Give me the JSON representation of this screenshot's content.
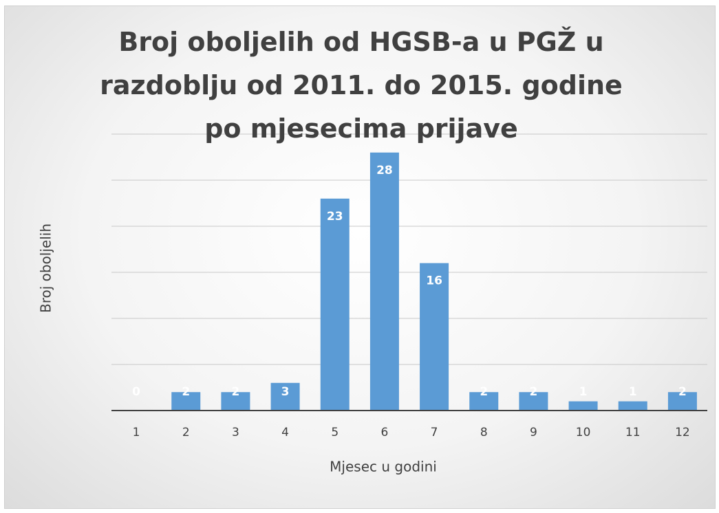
{
  "chart_data": {
    "type": "bar",
    "title": "Broj oboljelih od HGSB-a u PGŽ u razdoblju od 2011. do 2015. godine po mjesecima prijave",
    "x_label": "Mjesec u godini",
    "y_label": "Broj oboljelih",
    "categories": [
      "1",
      "2",
      "3",
      "4",
      "5",
      "6",
      "7",
      "8",
      "9",
      "10",
      "11",
      "12"
    ],
    "values": [
      0,
      2,
      2,
      3,
      23,
      28,
      16,
      2,
      2,
      1,
      1,
      2
    ],
    "color": "#5b9bd5",
    "ylim": [
      0,
      30
    ],
    "yticks": [
      0,
      5,
      10,
      15,
      20,
      25,
      30
    ],
    "grid": true
  }
}
